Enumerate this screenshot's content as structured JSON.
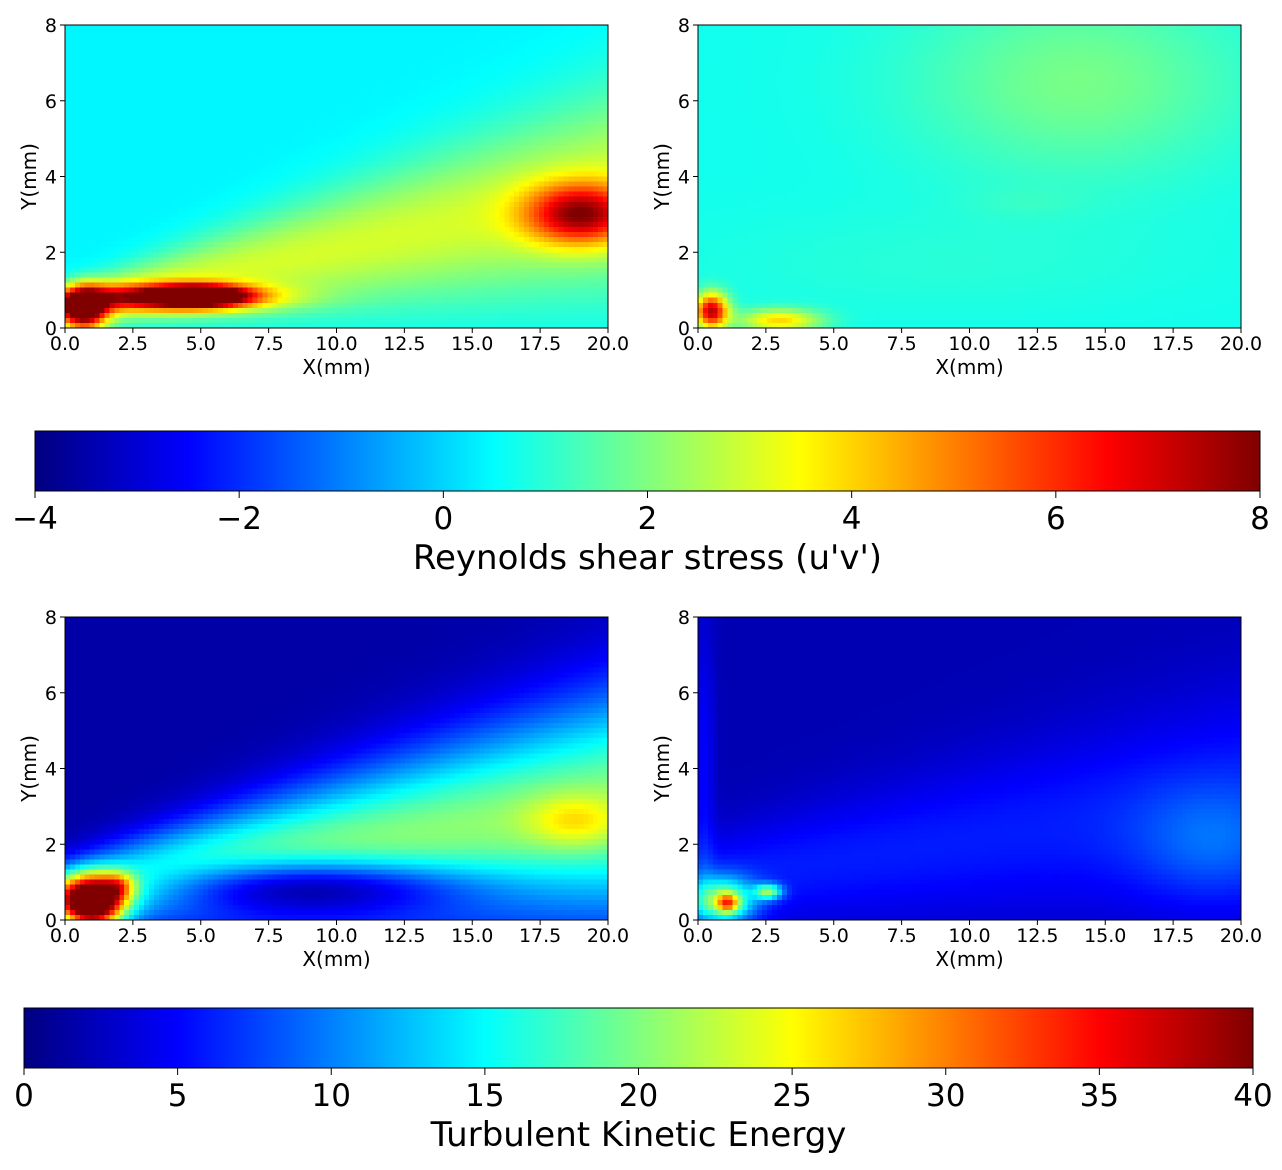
{
  "chart_data": [
    {
      "type": "heatmap",
      "panel": "top-left",
      "title": "",
      "xlabel": "X(mm)",
      "ylabel": "Y(mm)",
      "xlim": [
        0,
        20
      ],
      "ylim": [
        0,
        8
      ],
      "xticks": [
        "0.0",
        "2.5",
        "5.0",
        "7.5",
        "10.0",
        "12.5",
        "15.0",
        "17.5",
        "20.0"
      ],
      "yticks": [
        "0",
        "2",
        "4",
        "6",
        "8"
      ],
      "quantity": "Reynolds shear stress (u'v')",
      "vmin": -4,
      "vmax": 8,
      "background_value": 0.4,
      "features": [
        {
          "kind": "wedge",
          "x0": 0,
          "y0": 0.55,
          "x1": 20,
          "y1": 3.6,
          "width0": 0.5,
          "width1": 2.6,
          "v": 2.6
        },
        {
          "kind": "ellipse",
          "cx": 3.8,
          "cy": 0.8,
          "rx": 3.6,
          "ry": 0.35,
          "v": 5.6
        },
        {
          "kind": "ellipse",
          "cx": 0.7,
          "cy": 0.5,
          "rx": 0.8,
          "ry": 0.55,
          "v": 7.8
        },
        {
          "kind": "ellipse",
          "cx": 5.0,
          "cy": 0.85,
          "rx": 1.6,
          "ry": 0.25,
          "v": 7.8
        },
        {
          "kind": "ellipse",
          "cx": 19.0,
          "cy": 3.0,
          "rx": 2.0,
          "ry": 0.8,
          "v": 5.2
        }
      ]
    },
    {
      "type": "heatmap",
      "panel": "top-right",
      "title": "",
      "xlabel": "X(mm)",
      "ylabel": "Y(mm)",
      "xlim": [
        0,
        20
      ],
      "ylim": [
        0,
        8
      ],
      "xticks": [
        "0.0",
        "2.5",
        "5.0",
        "7.5",
        "10.0",
        "12.5",
        "15.0",
        "17.5",
        "20.0"
      ],
      "yticks": [
        "0",
        "2",
        "4",
        "6",
        "8"
      ],
      "quantity": "Reynolds shear stress (u'v')",
      "vmin": -4,
      "vmax": 8,
      "background_value": 0.7,
      "features": [
        {
          "kind": "ellipse",
          "cx": 14,
          "cy": 6.5,
          "rx": 6,
          "ry": 2.5,
          "v": 1.2
        },
        {
          "kind": "ellipse",
          "cx": 9,
          "cy": 1.7,
          "rx": 9,
          "ry": 1.4,
          "v": 0.25
        },
        {
          "kind": "ellipse",
          "cx": 12,
          "cy": 3.3,
          "rx": 2.2,
          "ry": 0.4,
          "v": 0.2
        },
        {
          "kind": "ellipse",
          "cx": 0.5,
          "cy": 0.45,
          "rx": 0.6,
          "ry": 0.45,
          "v": 6.5
        },
        {
          "kind": "ellipse",
          "cx": 3.0,
          "cy": 0.2,
          "rx": 1.5,
          "ry": 0.3,
          "v": 3.2
        }
      ]
    },
    {
      "type": "heatmap",
      "panel": "bottom-left",
      "title": "",
      "xlabel": "X(mm)",
      "ylabel": "Y(mm)",
      "xlim": [
        0,
        20
      ],
      "ylim": [
        0,
        8
      ],
      "xticks": [
        "0.0",
        "2.5",
        "5.0",
        "7.5",
        "10.0",
        "12.5",
        "15.0",
        "17.5",
        "20.0"
      ],
      "yticks": [
        "0",
        "2",
        "4",
        "6",
        "8"
      ],
      "quantity": "Turbulent Kinetic Energy",
      "vmin": 0,
      "vmax": 40,
      "background_value": 1.5,
      "features": [
        {
          "kind": "wedge",
          "x0": 0,
          "y0": 0.7,
          "x1": 20,
          "y1": 3.0,
          "width0": 0.8,
          "width1": 3.0,
          "v": 19
        },
        {
          "kind": "ellipse",
          "cx": 8.5,
          "cy": 0.9,
          "rx": 6.0,
          "ry": 0.75,
          "v": -14
        },
        {
          "kind": "ellipse",
          "cx": 18.8,
          "cy": 2.6,
          "rx": 1.8,
          "ry": 0.7,
          "v": 6
        },
        {
          "kind": "ellipse",
          "cx": 1.0,
          "cy": 0.45,
          "rx": 1.1,
          "ry": 0.65,
          "v": 39
        },
        {
          "kind": "ellipse",
          "cx": 2.0,
          "cy": 0.9,
          "rx": 0.6,
          "ry": 0.35,
          "v": 10
        }
      ]
    },
    {
      "type": "heatmap",
      "panel": "bottom-right",
      "title": "",
      "xlabel": "X(mm)",
      "ylabel": "Y(mm)",
      "xlim": [
        0,
        20
      ],
      "ylim": [
        0,
        8
      ],
      "xticks": [
        "0.0",
        "2.5",
        "5.0",
        "7.5",
        "10.0",
        "12.5",
        "15.0",
        "17.5",
        "20.0"
      ],
      "yticks": [
        "0",
        "2",
        "4",
        "6",
        "8"
      ],
      "quantity": "Turbulent Kinetic Energy",
      "vmin": 0,
      "vmax": 40,
      "background_value": 2.0,
      "features": [
        {
          "kind": "wedge",
          "x0": 0,
          "y0": 1.0,
          "x1": 20,
          "y1": 3.2,
          "width0": 1.2,
          "width1": 3.0,
          "v": 4
        },
        {
          "kind": "ellipse",
          "cx": 19,
          "cy": 2.0,
          "rx": 3.0,
          "ry": 1.6,
          "v": 4
        },
        {
          "kind": "ellipse",
          "cx": 0.2,
          "cy": 4.0,
          "rx": 0.4,
          "ry": 4.0,
          "v": 3
        },
        {
          "kind": "ellipse",
          "cx": 0.9,
          "cy": 0.5,
          "rx": 1.2,
          "ry": 0.6,
          "v": 16
        },
        {
          "kind": "ellipse",
          "cx": 1.1,
          "cy": 0.45,
          "rx": 0.4,
          "ry": 0.25,
          "v": 14
        },
        {
          "kind": "ellipse",
          "cx": 2.6,
          "cy": 0.75,
          "rx": 0.5,
          "ry": 0.2,
          "v": 14
        }
      ]
    }
  ],
  "colorbars": [
    {
      "label": "Reynolds shear stress (u'v')",
      "vmin": -4,
      "vmax": 8,
      "ticks": [
        "−4",
        "−2",
        "0",
        "2",
        "4",
        "6",
        "8"
      ],
      "tick_values": [
        -4,
        -2,
        0,
        2,
        4,
        6,
        8
      ],
      "colormap": "jet"
    },
    {
      "label": "Turbulent Kinetic Energy",
      "vmin": 0,
      "vmax": 40,
      "ticks": [
        "0",
        "5",
        "10",
        "15",
        "20",
        "25",
        "30",
        "35",
        "40"
      ],
      "tick_values": [
        0,
        5,
        10,
        15,
        20,
        25,
        30,
        35,
        40
      ],
      "colormap": "jet"
    }
  ]
}
